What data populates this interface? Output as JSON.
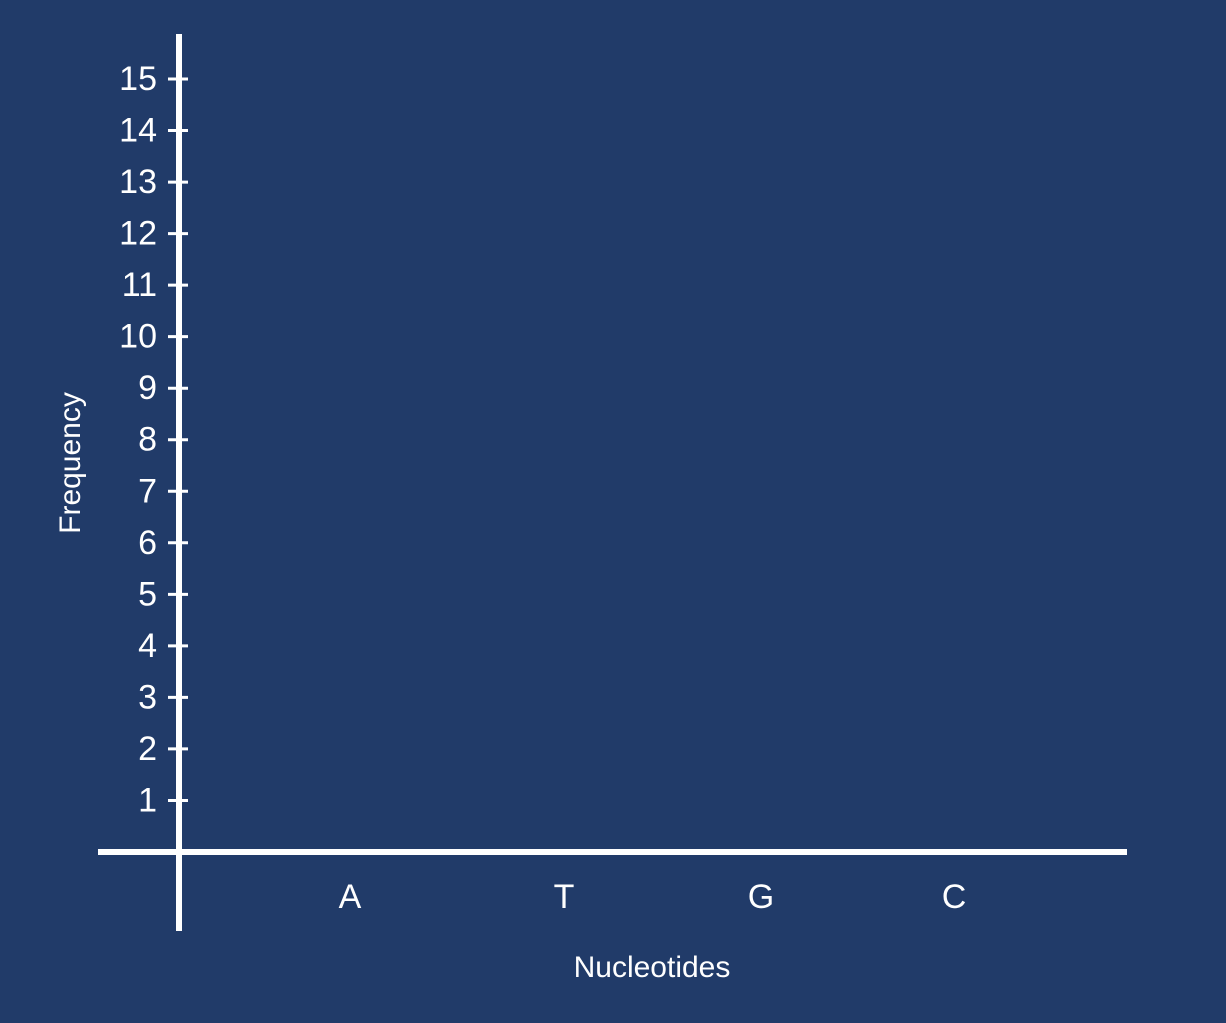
{
  "colors": {
    "background": "#213b69",
    "axis": "#ffffff",
    "text": "#ffffff"
  },
  "chart_data": {
    "type": "bar",
    "categories": [
      "A",
      "T",
      "G",
      "C"
    ],
    "series": [
      {
        "values": [
          null,
          null,
          null,
          null
        ]
      }
    ],
    "yticks": [
      "1",
      "2",
      "3",
      "4",
      "5",
      "6",
      "7",
      "8",
      "9",
      "10",
      "11",
      "12",
      "13",
      "14",
      "15"
    ],
    "ylim": [
      0,
      15
    ],
    "xlabel": "Nucleotides",
    "ylabel": "Frequency",
    "grid": false,
    "legend": "none"
  }
}
